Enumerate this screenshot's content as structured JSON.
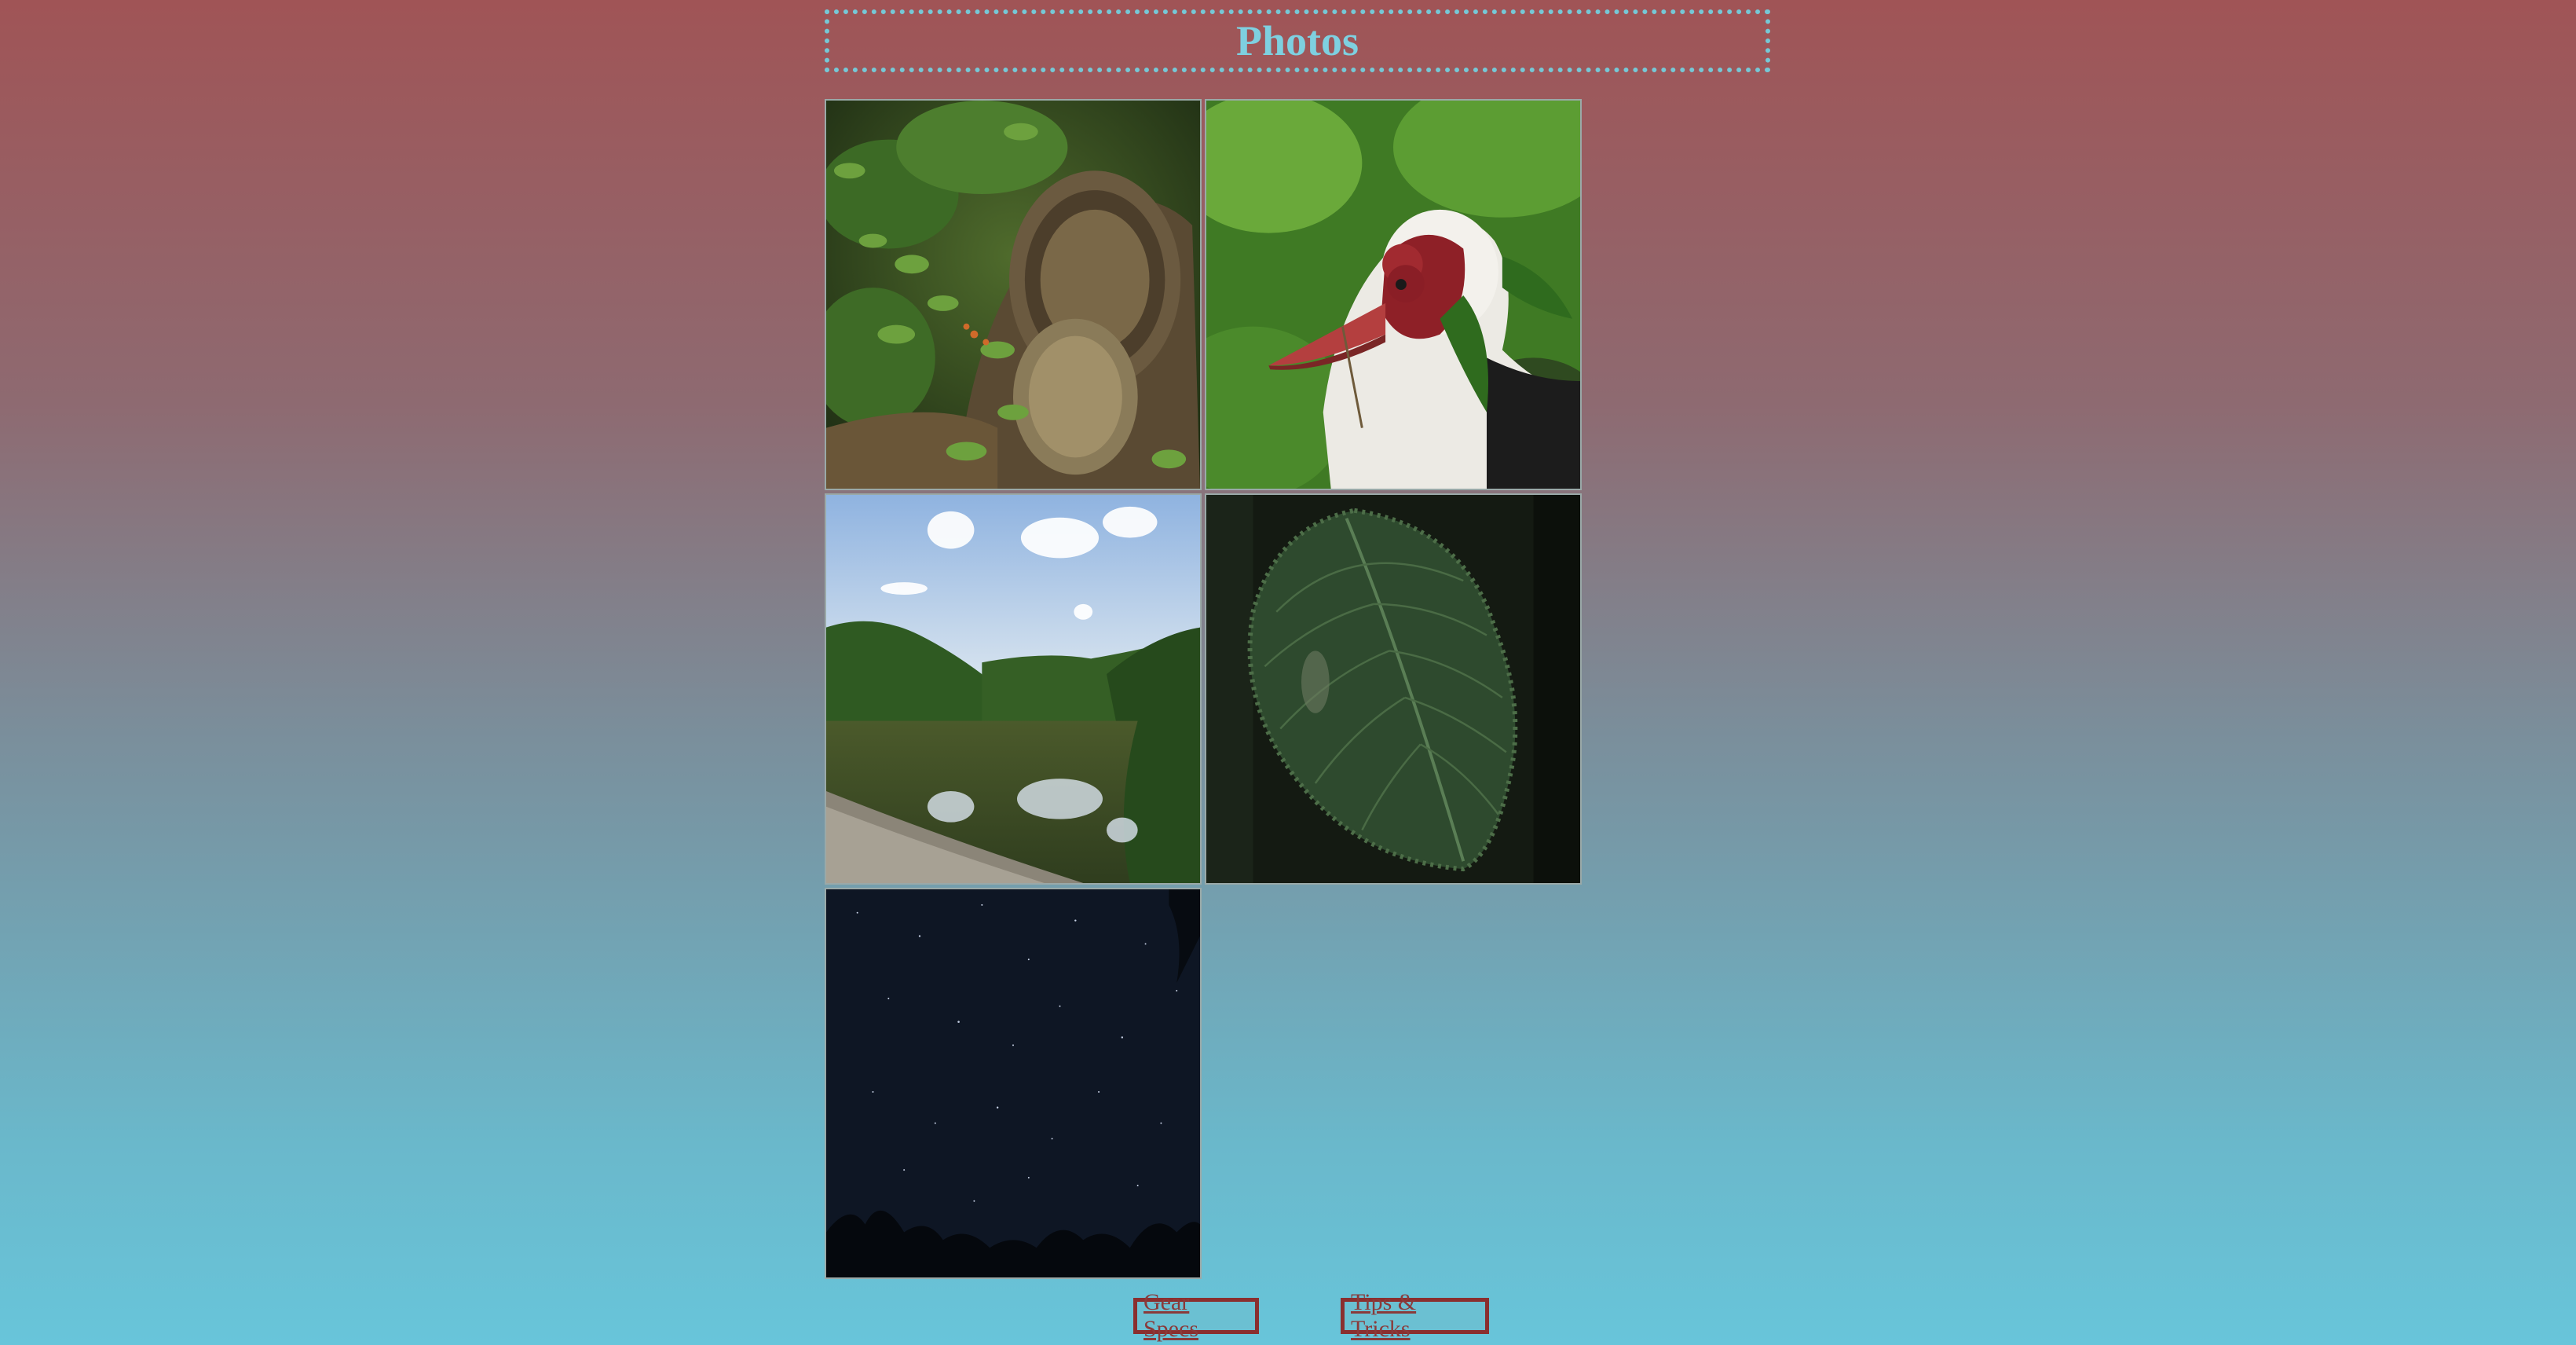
{
  "page": {
    "title": "Photos"
  },
  "gallery": {
    "photos": [
      {
        "subject": "mossy log with fungus"
      },
      {
        "subject": "muscovy duck in leaves"
      },
      {
        "subject": "river with reflected clouds"
      },
      {
        "subject": "dark green leaf"
      },
      {
        "subject": "night sky with stars"
      }
    ]
  },
  "nav": {
    "gear_specs": "Gear Specs",
    "tips_tricks": "Tips & Tricks"
  },
  "colors": {
    "title": "#7ed0e0",
    "title_border": "#76c8d6",
    "link_border": "#8a2f2f",
    "link_text": "#8a3a3a"
  }
}
